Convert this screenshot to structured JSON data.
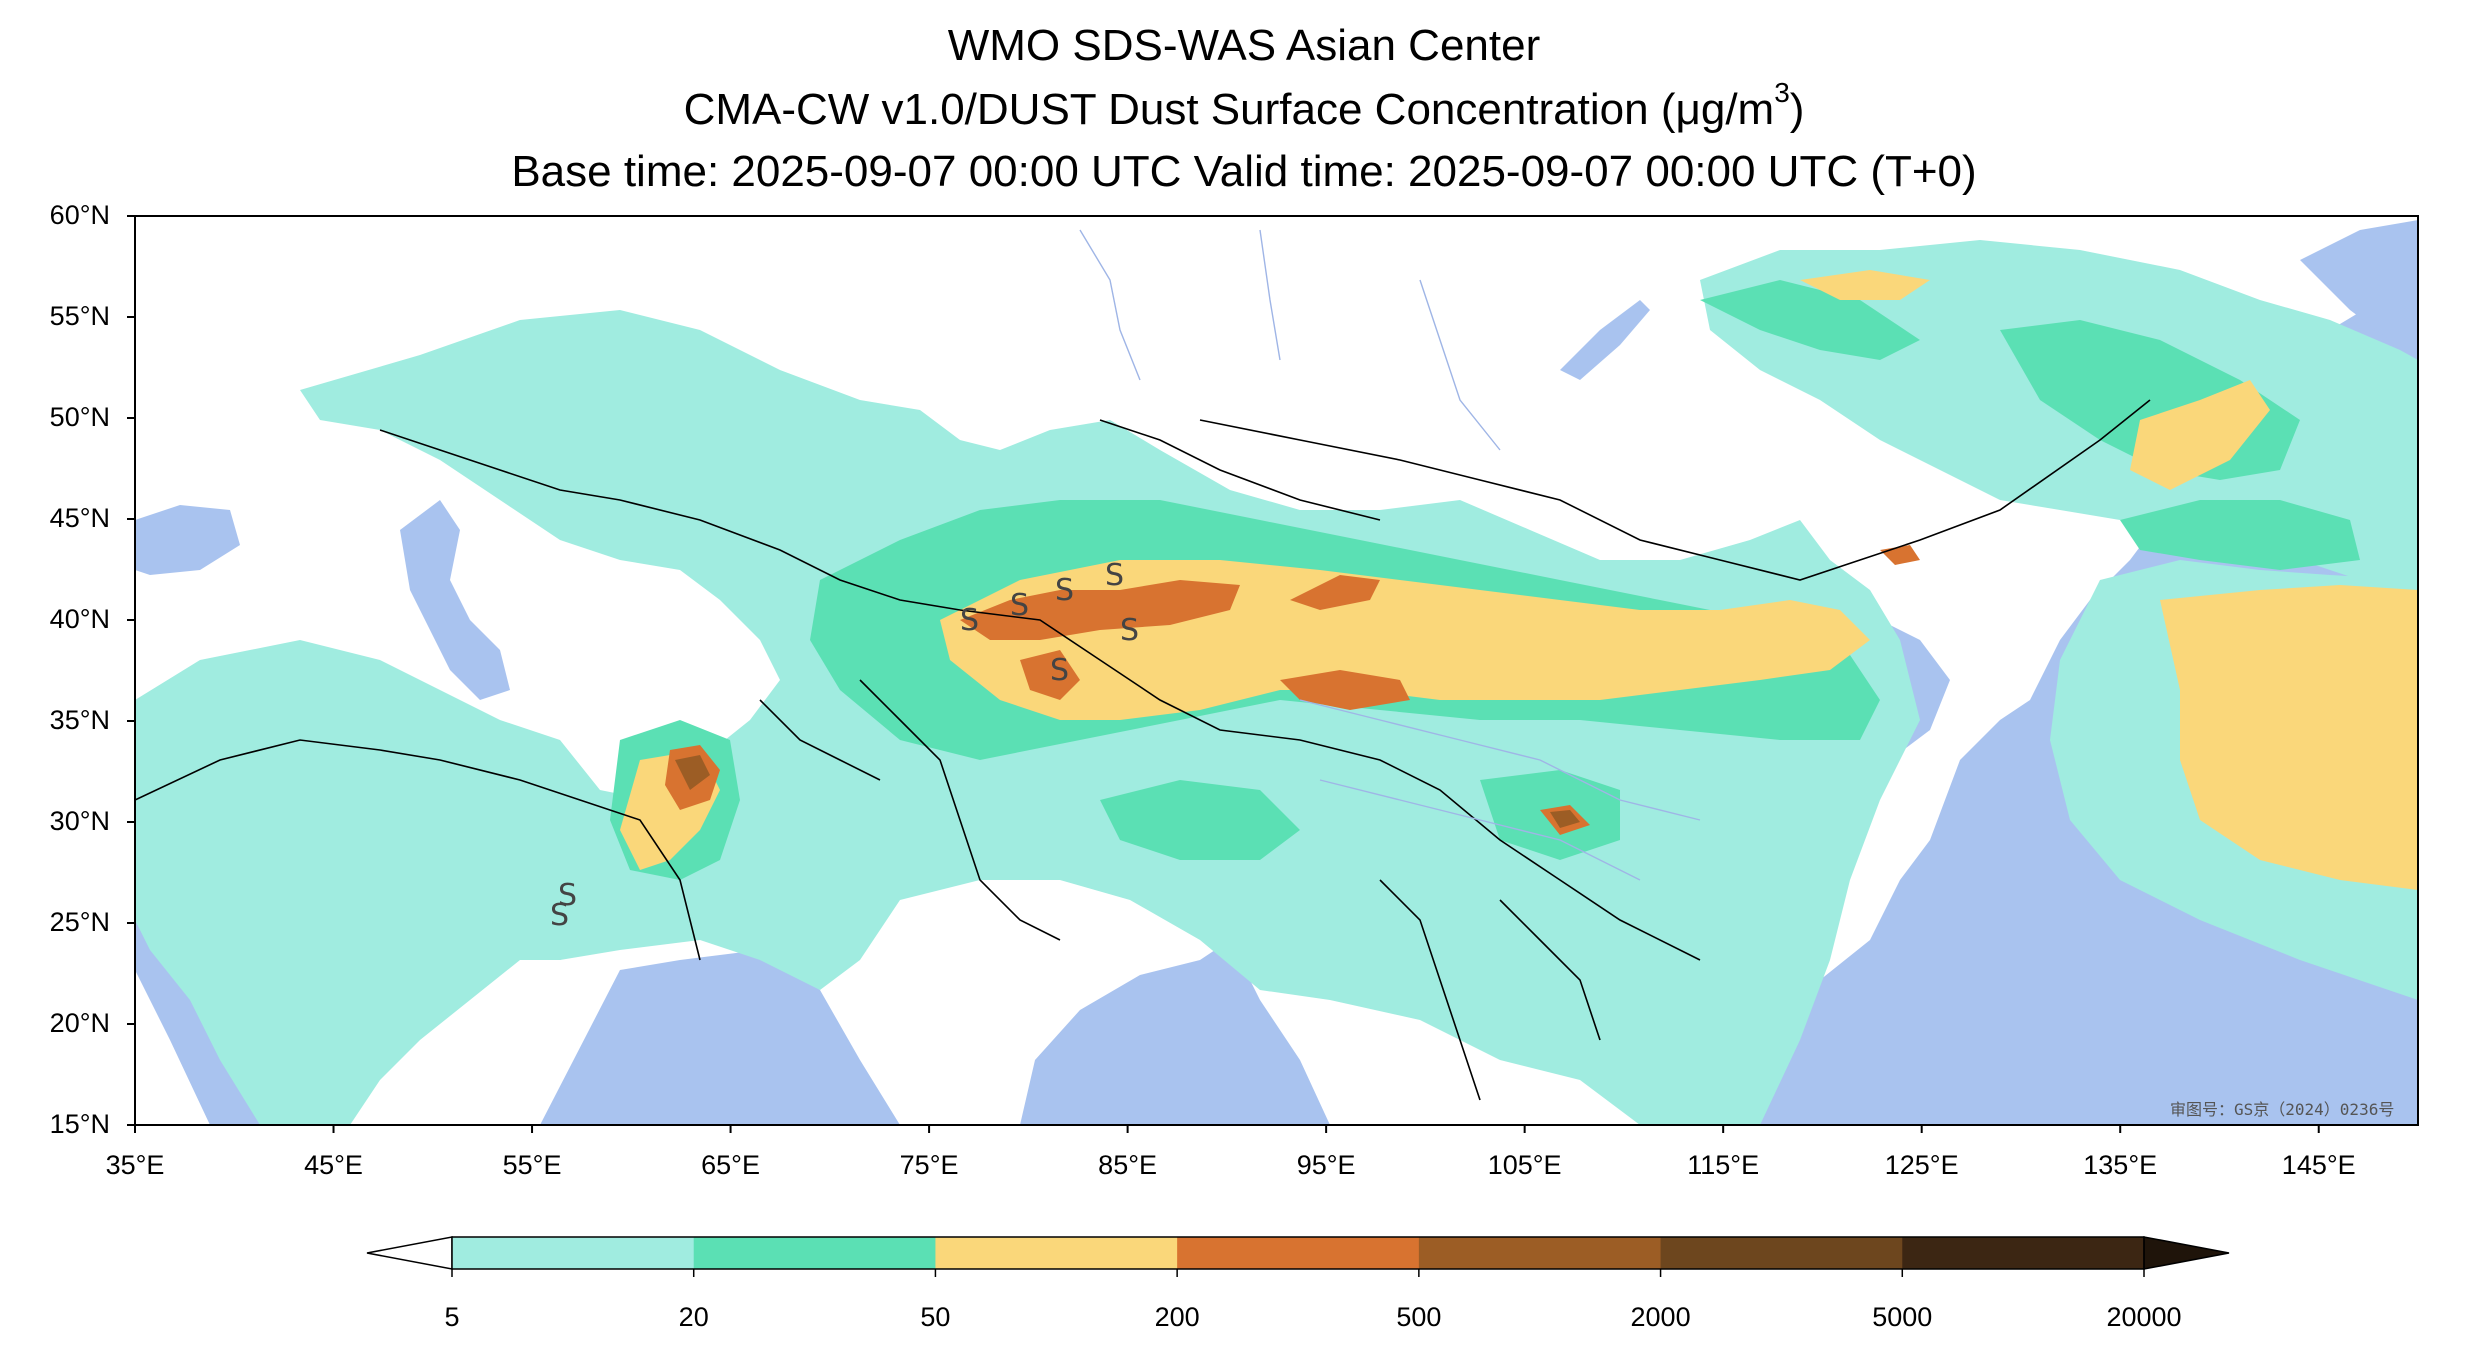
{
  "title": {
    "line1": "WMO SDS-WAS Asian Center",
    "line2_main": "CMA-CW v1.0/DUST Dust Surface Concentration (",
    "line2_unit": "μg/m",
    "line2_sup": "3",
    "line2_end": ")",
    "line3": "Base time: 2025-09-07 00:00 UTC Valid time: 2025-09-07 00:00 UTC (T+0)"
  },
  "map": {
    "lon_range": [
      35,
      150
    ],
    "lat_range": [
      15,
      60
    ],
    "lat_ticks": [
      "60°N",
      "55°N",
      "50°N",
      "45°N",
      "40°N",
      "35°N",
      "30°N",
      "25°N",
      "20°N",
      "15°N"
    ],
    "lon_ticks": [
      "35°E",
      "45°E",
      "55°E",
      "65°E",
      "75°E",
      "85°E",
      "95°E",
      "105°E",
      "115°E",
      "125°E",
      "135°E",
      "145°E"
    ],
    "water_color": "#a9c3ef",
    "dust_symbol": "S",
    "watermark": "审图号：GS京（2024）0236号"
  },
  "colorbar": {
    "levels": [
      "5",
      "20",
      "50",
      "200",
      "500",
      "2000",
      "5000",
      "20000"
    ],
    "colors": [
      "#a0ece0",
      "#5be0b4",
      "#fad77a",
      "#d87330",
      "#9c5d25",
      "#6d461e",
      "#3c2613"
    ],
    "under_color": "#ffffff",
    "over_color": "#1f140a"
  }
}
